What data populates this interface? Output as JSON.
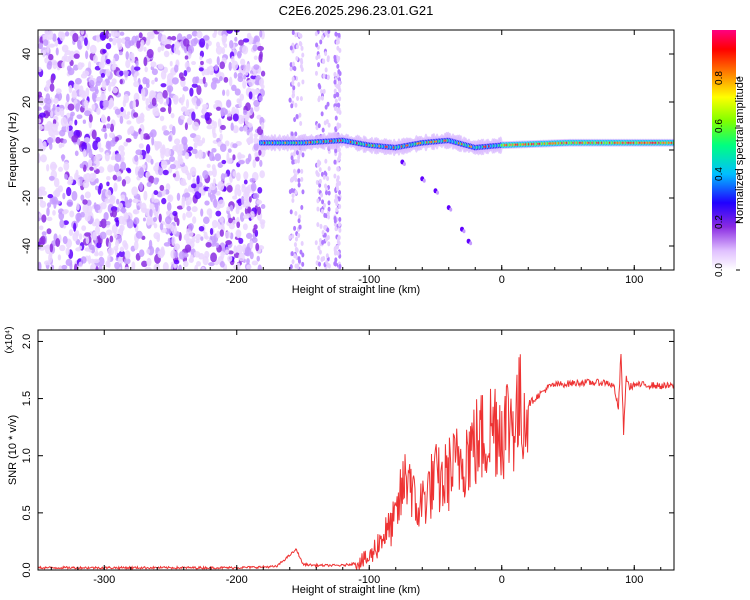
{
  "figure_title": "C2E6.2025.296.23.01.G21",
  "chart_data": [
    {
      "type": "heatmap",
      "title": "",
      "xlabel": "Height of straight line (km)",
      "ylabel": "Frequency (Hz)",
      "xlim": [
        -350,
        130
      ],
      "ylim": [
        -50,
        50
      ],
      "xticks": [
        "-300",
        "-200",
        "-100",
        "0",
        "100"
      ],
      "yticks": [
        "-40",
        "-20",
        "0",
        "20",
        "40"
      ],
      "colorbar": {
        "label": "Normalized spectral amplitude",
        "range": [
          0,
          1
        ],
        "ticks": [
          "0.0",
          "0.2",
          "0.4",
          "0.6",
          "0.8"
        ],
        "colormap": [
          "#ffffff",
          "#d8b0ff",
          "#8a2be2",
          "#5500ff",
          "#0000ff",
          "#00bfff",
          "#00ff80",
          "#7fff00",
          "#ffff00",
          "#ff8000",
          "#ff0000",
          "#ff0080"
        ]
      },
      "features": {
        "noise_region_x": [
          -350,
          -180
        ],
        "carrier_track": [
          {
            "x": -180,
            "y": 3
          },
          {
            "x": -150,
            "y": 3
          },
          {
            "x": -120,
            "y": 4
          },
          {
            "x": -100,
            "y": 2
          },
          {
            "x": -80,
            "y": 1
          },
          {
            "x": -60,
            "y": 3
          },
          {
            "x": -40,
            "y": 4
          },
          {
            "x": -20,
            "y": 1
          },
          {
            "x": 0,
            "y": 2
          },
          {
            "x": 50,
            "y": 3
          },
          {
            "x": 100,
            "y": 3
          },
          {
            "x": 130,
            "y": 3
          }
        ],
        "secondary_branch": [
          {
            "x": -75,
            "y": -5
          },
          {
            "x": -60,
            "y": -12
          },
          {
            "x": -50,
            "y": -17
          },
          {
            "x": -40,
            "y": -24
          },
          {
            "x": -30,
            "y": -33
          },
          {
            "x": -25,
            "y": -38
          }
        ]
      }
    },
    {
      "type": "line",
      "title": "",
      "xlabel": "Height of straight line (km)",
      "ylabel": "SNR (10 * v/v)",
      "yscale_label": "(x10⁴)",
      "xlim": [
        -350,
        130
      ],
      "ylim": [
        0,
        2.1
      ],
      "xticks": [
        "-300",
        "-200",
        "-100",
        "0",
        "100"
      ],
      "yticks": [
        "0.0",
        "0.5",
        "1.0",
        "1.5",
        "2.0"
      ],
      "series": [
        {
          "color": "#ee3333",
          "x": [
            -350,
            -300,
            -250,
            -200,
            -170,
            -155,
            -150,
            -140,
            -120,
            -110,
            -100,
            -95,
            -90,
            -85,
            -80,
            -75,
            -70,
            -65,
            -60,
            -55,
            -50,
            -45,
            -40,
            -35,
            -30,
            -25,
            -20,
            -15,
            -10,
            -5,
            0,
            5,
            10,
            15,
            20,
            25,
            30,
            35,
            40,
            50,
            60,
            70,
            80,
            85,
            88,
            90,
            92,
            94,
            96,
            100,
            110,
            120,
            130
          ],
          "y": [
            0.02,
            0.02,
            0.02,
            0.02,
            0.03,
            0.18,
            0.05,
            0.04,
            0.04,
            0.06,
            0.1,
            0.2,
            0.3,
            0.35,
            0.45,
            0.7,
            0.9,
            0.5,
            0.6,
            0.7,
            0.8,
            0.75,
            0.85,
            0.9,
            1.0,
            1.05,
            1.1,
            1.15,
            1.2,
            1.3,
            1.25,
            1.3,
            1.35,
            1.4,
            1.45,
            1.5,
            1.55,
            1.6,
            1.62,
            1.63,
            1.64,
            1.64,
            1.64,
            1.6,
            1.4,
            1.9,
            1.2,
            1.7,
            1.6,
            1.62,
            1.62,
            1.61,
            1.61
          ]
        }
      ]
    }
  ]
}
